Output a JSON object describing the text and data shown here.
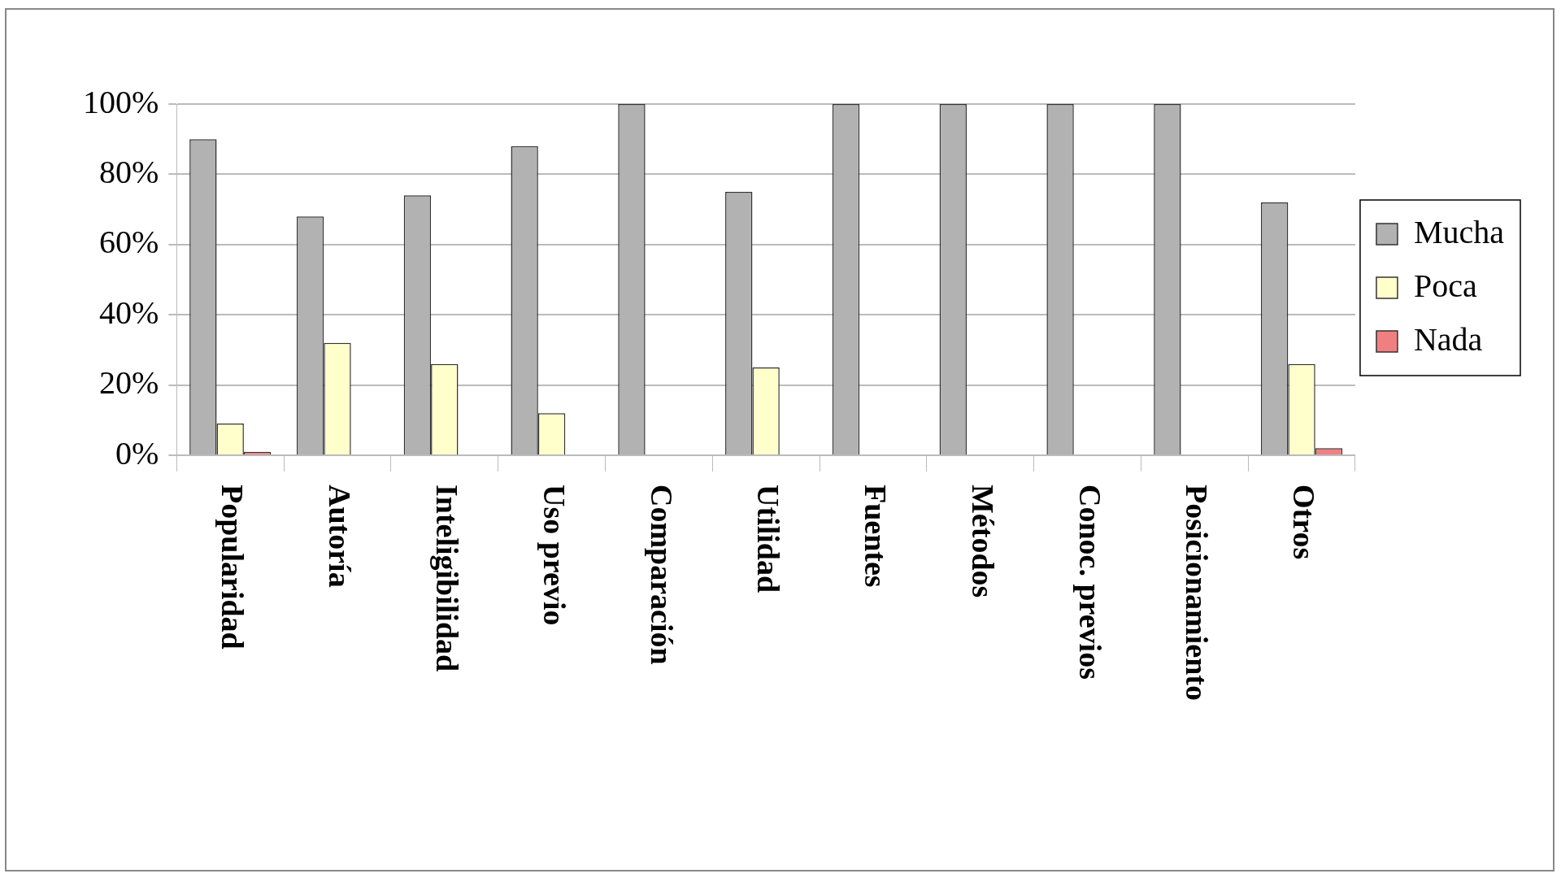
{
  "chart_data": {
    "type": "bar",
    "categories": [
      "Popularidad",
      "Autoría",
      "Inteligibilidad",
      "Uso previo",
      "Comparación",
      "Utilidad",
      "Fuentes",
      "Métodos",
      "Conoc. previos",
      "Posicionamiento",
      "Otros"
    ],
    "series": [
      {
        "name": "Mucha",
        "color": "#b2b2b2",
        "values": [
          90,
          68,
          74,
          88,
          100,
          75,
          100,
          100,
          100,
          100,
          72
        ]
      },
      {
        "name": "Poca",
        "color": "#ffffcc",
        "values": [
          9,
          32,
          26,
          12,
          0,
          25,
          0,
          0,
          0,
          0,
          26
        ]
      },
      {
        "name": "Nada",
        "color": "#f08080",
        "values": [
          1,
          0,
          0,
          0,
          0,
          0,
          0,
          0,
          0,
          0,
          2
        ]
      }
    ],
    "ylim": [
      0,
      100
    ],
    "yticks": [
      {
        "value": 0,
        "label": "0%"
      },
      {
        "value": 20,
        "label": "20%"
      },
      {
        "value": 40,
        "label": "40%"
      },
      {
        "value": 60,
        "label": "60%"
      },
      {
        "value": 80,
        "label": "80%"
      },
      {
        "value": 100,
        "label": "100%"
      }
    ],
    "grid": "y",
    "legend": "right"
  }
}
